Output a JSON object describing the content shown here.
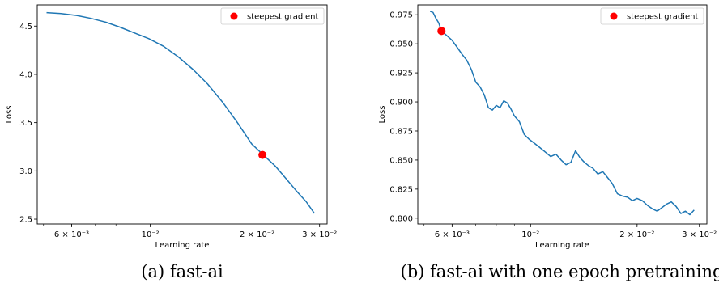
{
  "chart_data": [
    {
      "type": "line",
      "panel_caption": "(a) fast-ai",
      "xlabel": "Learning rate",
      "ylabel": "Loss",
      "xscale": "log",
      "xlim": [
        0.0048,
        0.0315
      ],
      "ylim": [
        2.45,
        4.72
      ],
      "xticks": [
        {
          "value": 0.006,
          "label": "6 × 10⁻³"
        },
        {
          "value": 0.01,
          "label": "10⁻²"
        },
        {
          "value": 0.02,
          "label": "2 × 10⁻²"
        },
        {
          "value": 0.03,
          "label": "3 × 10⁻²"
        }
      ],
      "yticks": [
        {
          "value": 2.5,
          "label": "2.5"
        },
        {
          "value": 3.0,
          "label": "3.0"
        },
        {
          "value": 3.5,
          "label": "3.5"
        },
        {
          "value": 4.0,
          "label": "4.0"
        },
        {
          "value": 4.5,
          "label": "4.5"
        }
      ],
      "series": [
        {
          "color": "#1f77b4",
          "x": [
            0.0051,
            0.0056,
            0.0062,
            0.0068,
            0.0075,
            0.0082,
            0.009,
            0.0099,
            0.0109,
            0.012,
            0.0132,
            0.0145,
            0.016,
            0.0176,
            0.0193,
            0.0209,
            0.0225,
            0.024,
            0.0257,
            0.0275,
            0.029
          ],
          "y": [
            4.64,
            4.63,
            4.61,
            4.58,
            4.54,
            4.49,
            4.43,
            4.37,
            4.29,
            4.18,
            4.05,
            3.9,
            3.71,
            3.5,
            3.28,
            3.16,
            3.05,
            2.93,
            2.8,
            2.68,
            2.56
          ]
        }
      ],
      "markers": [
        {
          "x": 0.0207,
          "y": 3.165,
          "color": "#ff0000"
        }
      ],
      "legend": {
        "placement": "top-right",
        "entries": [
          {
            "label": "steepest gradient",
            "color": "#ff0000"
          }
        ]
      }
    },
    {
      "type": "line",
      "panel_caption": "(b) fast-ai with one epoch pretraining",
      "xlabel": "Learning rate",
      "ylabel": "Loss",
      "xscale": "log",
      "xlim": [
        0.0048,
        0.0315
      ],
      "ylim": [
        0.795,
        0.9835
      ],
      "xticks": [
        {
          "value": 0.006,
          "label": "6 × 10⁻³"
        },
        {
          "value": 0.01,
          "label": "10⁻²"
        },
        {
          "value": 0.02,
          "label": "2 × 10⁻²"
        },
        {
          "value": 0.03,
          "label": "3 × 10⁻²"
        }
      ],
      "yticks": [
        {
          "value": 0.8,
          "label": "0.800"
        },
        {
          "value": 0.825,
          "label": "0.825"
        },
        {
          "value": 0.85,
          "label": "0.850"
        },
        {
          "value": 0.875,
          "label": "0.875"
        },
        {
          "value": 0.9,
          "label": "0.900"
        },
        {
          "value": 0.925,
          "label": "0.925"
        },
        {
          "value": 0.95,
          "label": "0.950"
        },
        {
          "value": 0.975,
          "label": "0.975"
        }
      ],
      "series": [
        {
          "color": "#1f77b4",
          "x": [
            0.0052,
            0.0053,
            0.0054,
            0.0055,
            0.0056,
            0.0058,
            0.006,
            0.0062,
            0.0064,
            0.0066,
            0.0068,
            0.007,
            0.0072,
            0.0074,
            0.0076,
            0.0078,
            0.008,
            0.0082,
            0.0084,
            0.0086,
            0.0088,
            0.009,
            0.0093,
            0.0096,
            0.0099,
            0.0102,
            0.0106,
            0.011,
            0.0114,
            0.0118,
            0.0122,
            0.0126,
            0.013,
            0.0134,
            0.0138,
            0.0142,
            0.0146,
            0.015,
            0.0155,
            0.016,
            0.0165,
            0.017,
            0.0176,
            0.0182,
            0.0188,
            0.0194,
            0.02,
            0.0207,
            0.0214,
            0.0221,
            0.0228,
            0.0235,
            0.0242,
            0.025,
            0.0258,
            0.0266,
            0.0274,
            0.0282,
            0.029
          ],
          "y": [
            0.978,
            0.977,
            0.972,
            0.968,
            0.961,
            0.957,
            0.953,
            0.947,
            0.941,
            0.936,
            0.928,
            0.917,
            0.913,
            0.906,
            0.895,
            0.893,
            0.897,
            0.895,
            0.901,
            0.899,
            0.894,
            0.888,
            0.883,
            0.872,
            0.868,
            0.865,
            0.861,
            0.857,
            0.853,
            0.855,
            0.85,
            0.846,
            0.848,
            0.858,
            0.852,
            0.848,
            0.845,
            0.843,
            0.838,
            0.84,
            0.835,
            0.83,
            0.821,
            0.819,
            0.818,
            0.815,
            0.817,
            0.815,
            0.811,
            0.808,
            0.806,
            0.809,
            0.812,
            0.814,
            0.81,
            0.804,
            0.806,
            0.803,
            0.807
          ]
        }
      ],
      "markers": [
        {
          "x": 0.0056,
          "y": 0.961,
          "color": "#ff0000"
        }
      ],
      "legend": {
        "placement": "top-right",
        "entries": [
          {
            "label": "steepest gradient",
            "color": "#ff0000"
          }
        ]
      }
    }
  ],
  "styles": {
    "line_color": "#1f77b4",
    "marker_color": "#ff0000",
    "axis_color": "#000000",
    "legend_border": "#cccccc"
  }
}
